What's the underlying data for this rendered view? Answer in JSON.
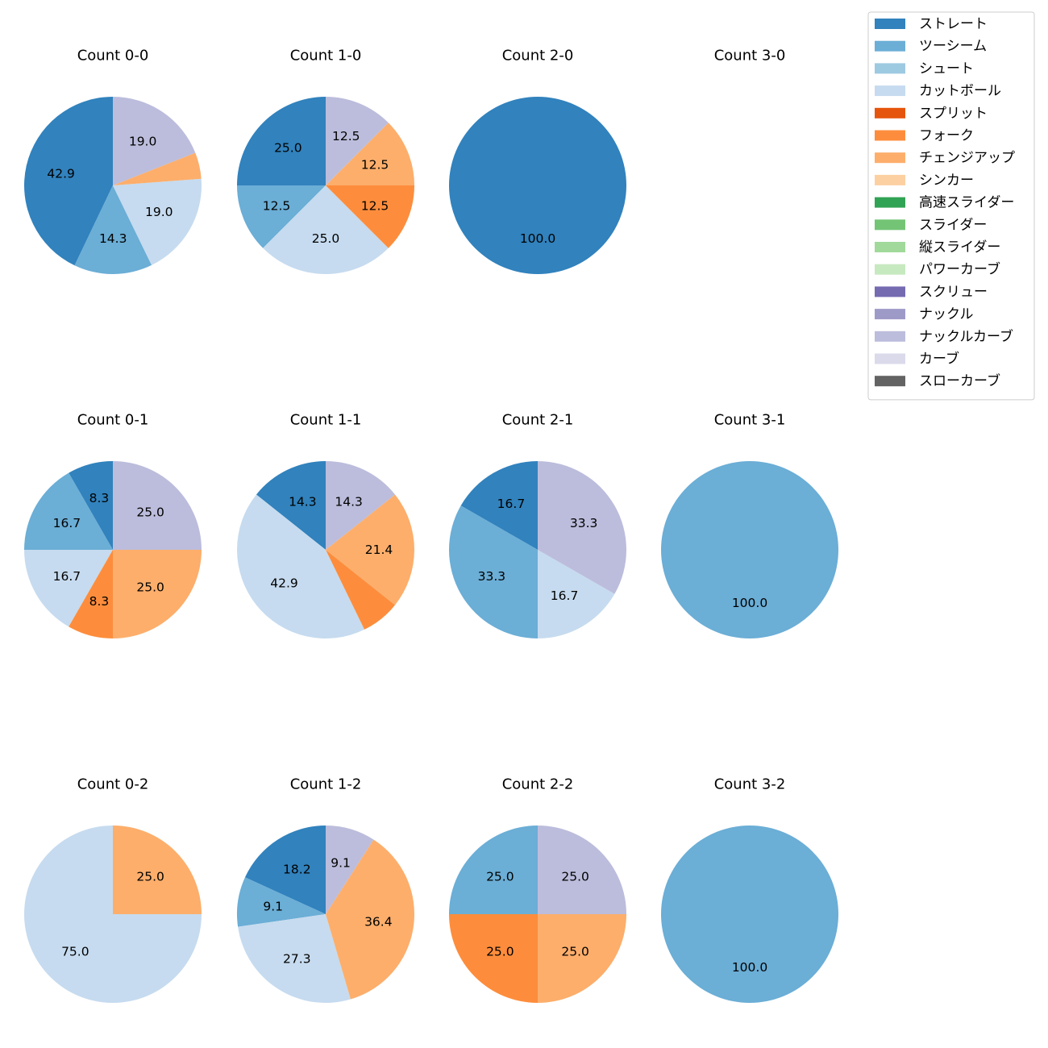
{
  "chart_data": {
    "type": "pie",
    "categories": [
      "ストレート",
      "ツーシーム",
      "シュート",
      "カットボール",
      "スプリット",
      "フォーク",
      "チェンジアップ",
      "シンカー",
      "高速スライダー",
      "スライダー",
      "縦スライダー",
      "パワーカーブ",
      "スクリュー",
      "ナックル",
      "ナックルカーブ",
      "カーブ",
      "スローカーブ"
    ],
    "colors": [
      "#3182bd",
      "#6baed6",
      "#9ecae1",
      "#c6dbef",
      "#e6550d",
      "#fd8d3c",
      "#fdae6b",
      "#fdd0a2",
      "#31a354",
      "#74c476",
      "#a1d99b",
      "#c7e9c0",
      "#756bb1",
      "#9e9ac8",
      "#bcbddc",
      "#dadaeb",
      "#636363"
    ],
    "legend_position": "top-right",
    "label_threshold": 5,
    "panels": [
      {
        "title": "Count 0-0",
        "values": [
          42.9,
          14.3,
          0,
          19.0,
          0,
          0,
          4.8,
          0,
          0,
          0,
          0,
          0,
          0,
          0,
          19.0,
          0,
          0
        ],
        "labels": [
          "42.9",
          "14.3",
          "",
          "19.0",
          "",
          "",
          "",
          "",
          "",
          "",
          "",
          "",
          "",
          "",
          "19.0",
          "",
          ""
        ]
      },
      {
        "title": "Count 1-0",
        "values": [
          25.0,
          12.5,
          0,
          25.0,
          0,
          12.5,
          12.5,
          0,
          0,
          0,
          0,
          0,
          0,
          0,
          12.5,
          0,
          0
        ],
        "labels": [
          "25.0",
          "12.5",
          "",
          "25.0",
          "",
          "12.5",
          "12.5",
          "",
          "",
          "",
          "",
          "",
          "",
          "",
          "12.5",
          "",
          ""
        ]
      },
      {
        "title": "Count 2-0",
        "values": [
          100.0,
          0,
          0,
          0,
          0,
          0,
          0,
          0,
          0,
          0,
          0,
          0,
          0,
          0,
          0,
          0,
          0
        ],
        "labels": [
          "100.0",
          "",
          "",
          "",
          "",
          "",
          "",
          "",
          "",
          "",
          "",
          "",
          "",
          "",
          "",
          "",
          ""
        ]
      },
      {
        "title": "Count 3-0",
        "values": [],
        "labels": []
      },
      {
        "title": "Count 0-1",
        "values": [
          8.3,
          16.7,
          0,
          16.7,
          0,
          8.3,
          25.0,
          0,
          0,
          0,
          0,
          0,
          0,
          0,
          25.0,
          0,
          0
        ],
        "labels": [
          "8.3",
          "16.7",
          "",
          "16.7",
          "",
          "8.3",
          "25.0",
          "",
          "",
          "",
          "",
          "",
          "",
          "",
          "25.0",
          "",
          ""
        ]
      },
      {
        "title": "Count 1-1",
        "values": [
          14.3,
          0,
          0,
          42.9,
          0,
          7.1,
          21.4,
          0,
          0,
          0,
          0,
          0,
          0,
          0,
          14.3,
          0,
          0
        ],
        "labels": [
          "14.3",
          "",
          "",
          "42.9",
          "",
          "",
          "21.4",
          "",
          "",
          "",
          "",
          "",
          "",
          "",
          "14.3",
          "",
          ""
        ]
      },
      {
        "title": "Count 2-1",
        "values": [
          16.7,
          33.3,
          0,
          16.7,
          0,
          0,
          0,
          0,
          0,
          0,
          0,
          0,
          0,
          0,
          33.3,
          0,
          0
        ],
        "labels": [
          "16.7",
          "33.3",
          "",
          "16.7",
          "",
          "",
          "",
          "",
          "",
          "",
          "",
          "",
          "",
          "",
          "33.3",
          "",
          ""
        ]
      },
      {
        "title": "Count 3-1",
        "values": [
          0,
          100.0,
          0,
          0,
          0,
          0,
          0,
          0,
          0,
          0,
          0,
          0,
          0,
          0,
          0,
          0,
          0
        ],
        "labels": [
          "",
          "100.0",
          "",
          "",
          "",
          "",
          "",
          "",
          "",
          "",
          "",
          "",
          "",
          "",
          "",
          "",
          ""
        ]
      },
      {
        "title": "Count 0-2",
        "values": [
          0,
          0,
          0,
          75.0,
          0,
          0,
          25.0,
          0,
          0,
          0,
          0,
          0,
          0,
          0,
          0,
          0,
          0
        ],
        "labels": [
          "",
          "",
          "",
          "75.0",
          "",
          "",
          "25.0",
          "",
          "",
          "",
          "",
          "",
          "",
          "",
          "",
          "",
          ""
        ]
      },
      {
        "title": "Count 1-2",
        "values": [
          18.2,
          9.1,
          0,
          27.3,
          0,
          0,
          36.4,
          0,
          0,
          0,
          0,
          0,
          0,
          0,
          9.1,
          0,
          0
        ],
        "labels": [
          "18.2",
          "9.1",
          "",
          "27.3",
          "",
          "",
          "36.4",
          "",
          "",
          "",
          "",
          "",
          "",
          "",
          "9.1",
          "",
          ""
        ]
      },
      {
        "title": "Count 2-2",
        "values": [
          0,
          25.0,
          0,
          0,
          0,
          25.0,
          25.0,
          0,
          0,
          0,
          0,
          0,
          0,
          0,
          25.0,
          0,
          0
        ],
        "labels": [
          "",
          "25.0",
          "",
          "",
          "",
          "25.0",
          "25.0",
          "",
          "",
          "",
          "",
          "",
          "",
          "",
          "25.0",
          "",
          ""
        ]
      },
      {
        "title": "Count 3-2",
        "values": [
          0,
          100.0,
          0,
          0,
          0,
          0,
          0,
          0,
          0,
          0,
          0,
          0,
          0,
          0,
          0,
          0,
          0
        ],
        "labels": [
          "",
          "100.0",
          "",
          "",
          "",
          "",
          "",
          "",
          "",
          "",
          "",
          "",
          "",
          "",
          "",
          "",
          ""
        ]
      }
    ]
  }
}
